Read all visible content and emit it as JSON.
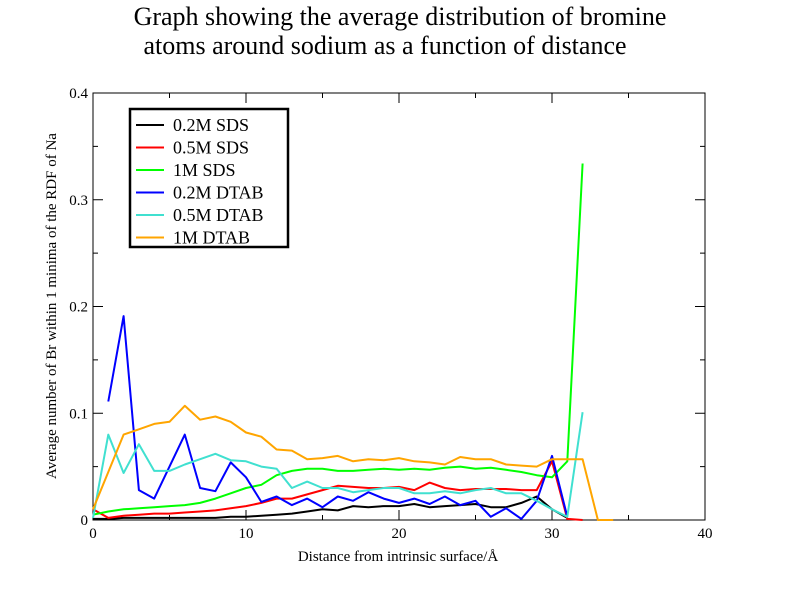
{
  "chart_data": {
    "type": "line",
    "title": [
      "Graph showing the average distribution of bromine",
      "atoms around sodium as a function of distance"
    ],
    "xlabel": "Distance from intrinsic surface/Å",
    "ylabel": "Average number of Br within 1 minima of the RDF of Na",
    "xlim": [
      0,
      40
    ],
    "ylim": [
      0,
      0.4
    ],
    "xticks": [
      0,
      10,
      20,
      30,
      40
    ],
    "xtick_labels": [
      "0",
      "10",
      "20",
      "30",
      "40"
    ],
    "yticks": [
      0,
      0.1,
      0.2,
      0.3,
      0.4
    ],
    "ytick_labels": [
      "0",
      "0.1",
      "0.2",
      "0.3",
      "0.4"
    ],
    "grid": false,
    "legend_position": "top-left",
    "series": [
      {
        "name": "0.2M SDS",
        "color": "#000000",
        "x": [
          0,
          1,
          2,
          3,
          4,
          5,
          6,
          7,
          8,
          9,
          10,
          11,
          12,
          13,
          14,
          15,
          16,
          17,
          18,
          19,
          20,
          21,
          22,
          23,
          24,
          25,
          26,
          27,
          28,
          29,
          30,
          31
        ],
        "y": [
          0.001,
          0.001,
          0.002,
          0.002,
          0.002,
          0.002,
          0.002,
          0.002,
          0.002,
          0.003,
          0.003,
          0.004,
          0.005,
          0.006,
          0.008,
          0.01,
          0.009,
          0.013,
          0.012,
          0.013,
          0.013,
          0.015,
          0.012,
          0.013,
          0.014,
          0.015,
          0.012,
          0.012,
          0.016,
          0.022,
          0.01,
          0.002
        ]
      },
      {
        "name": "0.5M SDS",
        "color": "#ff0000",
        "x": [
          0,
          1,
          2,
          3,
          4,
          5,
          6,
          7,
          8,
          9,
          10,
          11,
          12,
          13,
          14,
          15,
          16,
          17,
          18,
          19,
          20,
          21,
          22,
          23,
          24,
          25,
          26,
          27,
          28,
          29,
          30,
          31,
          32
        ],
        "y": [
          0.01,
          0.002,
          0.004,
          0.005,
          0.006,
          0.006,
          0.007,
          0.008,
          0.009,
          0.011,
          0.013,
          0.016,
          0.02,
          0.02,
          0.024,
          0.028,
          0.032,
          0.031,
          0.03,
          0.03,
          0.031,
          0.028,
          0.035,
          0.03,
          0.028,
          0.029,
          0.029,
          0.029,
          0.028,
          0.028,
          0.055,
          0.001,
          0.0
        ]
      },
      {
        "name": "1M SDS",
        "color": "#00ff00",
        "x": [
          0,
          1,
          2,
          3,
          4,
          5,
          6,
          7,
          8,
          9,
          10,
          11,
          12,
          13,
          14,
          15,
          16,
          17,
          18,
          19,
          20,
          21,
          22,
          23,
          24,
          25,
          26,
          27,
          28,
          29,
          30,
          31,
          32
        ],
        "y": [
          0.005,
          0.008,
          0.01,
          0.011,
          0.012,
          0.013,
          0.014,
          0.016,
          0.02,
          0.025,
          0.03,
          0.033,
          0.042,
          0.046,
          0.048,
          0.048,
          0.046,
          0.046,
          0.047,
          0.048,
          0.047,
          0.048,
          0.047,
          0.049,
          0.05,
          0.048,
          0.049,
          0.047,
          0.045,
          0.042,
          0.04,
          0.055,
          0.334
        ]
      },
      {
        "name": "0.2M DTAB",
        "color": "#0000ff",
        "x": [
          1,
          2,
          3,
          4,
          5,
          6,
          7,
          8,
          9,
          10,
          11,
          12,
          13,
          14,
          15,
          16,
          17,
          18,
          19,
          20,
          21,
          22,
          23,
          24,
          25,
          26,
          27,
          28,
          29,
          30,
          31
        ],
        "y": [
          0.111,
          0.191,
          0.028,
          0.02,
          0.05,
          0.08,
          0.03,
          0.027,
          0.054,
          0.04,
          0.017,
          0.022,
          0.014,
          0.02,
          0.012,
          0.022,
          0.018,
          0.026,
          0.02,
          0.016,
          0.02,
          0.015,
          0.022,
          0.014,
          0.018,
          0.003,
          0.011,
          0.001,
          0.018,
          0.06,
          0.003
        ]
      },
      {
        "name": "0.5M DTAB",
        "color": "#40e0d0",
        "x": [
          0,
          1,
          2,
          3,
          4,
          5,
          6,
          7,
          8,
          9,
          10,
          11,
          12,
          13,
          14,
          15,
          16,
          17,
          18,
          19,
          20,
          21,
          22,
          23,
          24,
          25,
          26,
          27,
          28,
          29,
          30,
          31,
          32
        ],
        "y": [
          0.002,
          0.08,
          0.044,
          0.071,
          0.046,
          0.046,
          0.052,
          0.057,
          0.062,
          0.056,
          0.055,
          0.05,
          0.048,
          0.03,
          0.036,
          0.03,
          0.03,
          0.026,
          0.028,
          0.03,
          0.03,
          0.025,
          0.025,
          0.027,
          0.025,
          0.028,
          0.03,
          0.025,
          0.025,
          0.018,
          0.01,
          0.003,
          0.101
        ]
      },
      {
        "name": "1M DTAB",
        "color": "#ffa500",
        "x": [
          0,
          1,
          2,
          3,
          4,
          5,
          6,
          7,
          8,
          9,
          10,
          11,
          12,
          13,
          14,
          15,
          16,
          17,
          18,
          19,
          20,
          21,
          22,
          23,
          24,
          25,
          26,
          27,
          28,
          29,
          30,
          31,
          32,
          33,
          34
        ],
        "y": [
          0.01,
          0.045,
          0.08,
          0.085,
          0.09,
          0.092,
          0.107,
          0.094,
          0.097,
          0.092,
          0.082,
          0.078,
          0.066,
          0.065,
          0.057,
          0.058,
          0.06,
          0.055,
          0.057,
          0.056,
          0.058,
          0.055,
          0.054,
          0.052,
          0.059,
          0.057,
          0.057,
          0.052,
          0.051,
          0.05,
          0.057,
          0.057,
          0.057,
          0.0,
          0.0
        ]
      }
    ]
  }
}
